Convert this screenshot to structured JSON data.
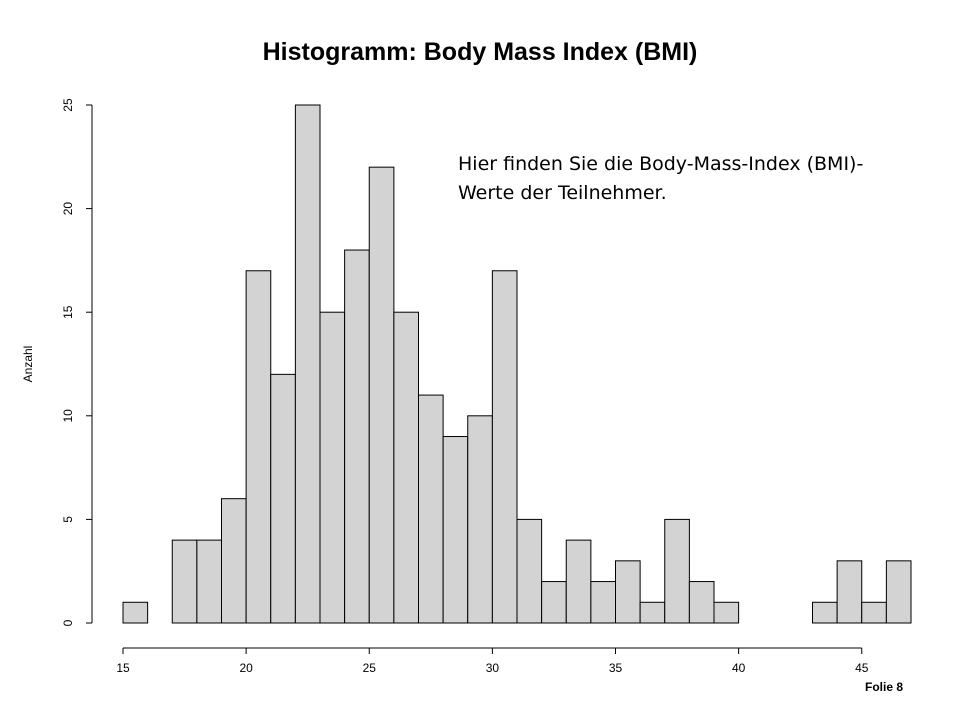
{
  "slide": {
    "title": "Histogramm: Body Mass Index (BMI)",
    "annotation": "Hier finden Sie die Body-Mass-Index (BMI)-Werte der Teilnehmer.",
    "footer": "Folie 8"
  },
  "chart_data": {
    "type": "bar",
    "title": "Histogramm: Body Mass Index (BMI)",
    "xlabel": "",
    "ylabel": "Anzahl",
    "bin_width": 1,
    "bin_starts": [
      15,
      16,
      17,
      18,
      19,
      20,
      21,
      22,
      23,
      24,
      25,
      26,
      27,
      28,
      29,
      30,
      31,
      32,
      33,
      34,
      35,
      36,
      37,
      38,
      39,
      40,
      41,
      42,
      43,
      44,
      45,
      46
    ],
    "values": [
      1,
      0,
      4,
      4,
      6,
      17,
      12,
      25,
      15,
      18,
      22,
      15,
      11,
      9,
      10,
      17,
      5,
      2,
      4,
      2,
      3,
      1,
      5,
      2,
      1,
      0,
      0,
      0,
      1,
      3,
      1,
      3
    ],
    "xlim": [
      15,
      47
    ],
    "ylim": [
      0,
      25
    ],
    "x_ticks": [
      15,
      20,
      25,
      30,
      35,
      40,
      45
    ],
    "y_ticks": [
      0,
      5,
      10,
      15,
      20,
      25
    ],
    "bar_color": "#d3d3d3",
    "bar_edge_color": "#000000",
    "grid": false
  }
}
